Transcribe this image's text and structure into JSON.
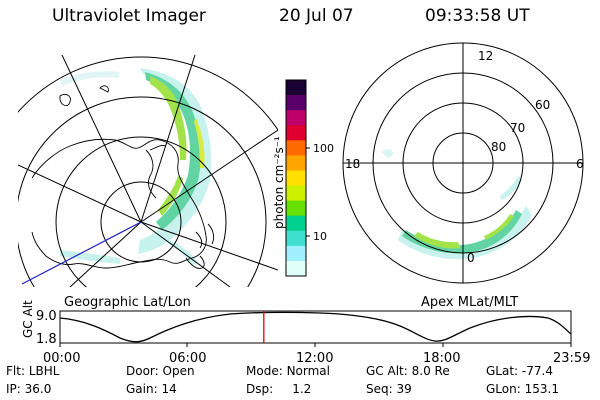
{
  "header": {
    "title": "Ultraviolet Imager",
    "date": "20 Jul 07",
    "time": "09:33:58 UT"
  },
  "left_panel": {
    "label": "Geographic Lat/Lon"
  },
  "colorbar": {
    "unit_label": "photon cm⁻²s⁻¹",
    "ticks": [
      "100",
      "10"
    ],
    "colors": [
      "#1a0033",
      "#5a006a",
      "#c0006a",
      "#e00030",
      "#ff6a00",
      "#ffa500",
      "#ffe000",
      "#ccf000",
      "#66e000",
      "#00d090",
      "#40e0d0",
      "#a0f0ff",
      "#e0fff8"
    ]
  },
  "right_panel": {
    "label": "Apex MLat/MLT",
    "mlt_labels": {
      "top": "12",
      "left": "18",
      "right": "6",
      "bottom": "0"
    },
    "lat_labels": [
      "60",
      "70",
      "80"
    ]
  },
  "altitude": {
    "ylabel": "GC Alt",
    "y_ticks": [
      "9.0",
      "1.8"
    ],
    "x_ticks": [
      "00:00",
      "06:00",
      "12:00",
      "18:00",
      "23:59"
    ],
    "marker_time": "09:33:58"
  },
  "info": {
    "row1": [
      {
        "key": "Flt:",
        "value": "LBHL"
      },
      {
        "key": "Door:",
        "value": "Open"
      },
      {
        "key": "Mode:",
        "value": "Normal"
      },
      {
        "key": "GC Alt:",
        "value": "8.0 Re"
      },
      {
        "key": "GLat:",
        "value": "-77.4"
      }
    ],
    "row2": [
      {
        "key": "IP:",
        "value": "36.0"
      },
      {
        "key": "Gain:",
        "value": "14"
      },
      {
        "key": "Dsp:",
        "value": "1.2"
      },
      {
        "key": "Seq:",
        "value": "39"
      },
      {
        "key": "GLon:",
        "value": "153.1"
      }
    ]
  }
}
